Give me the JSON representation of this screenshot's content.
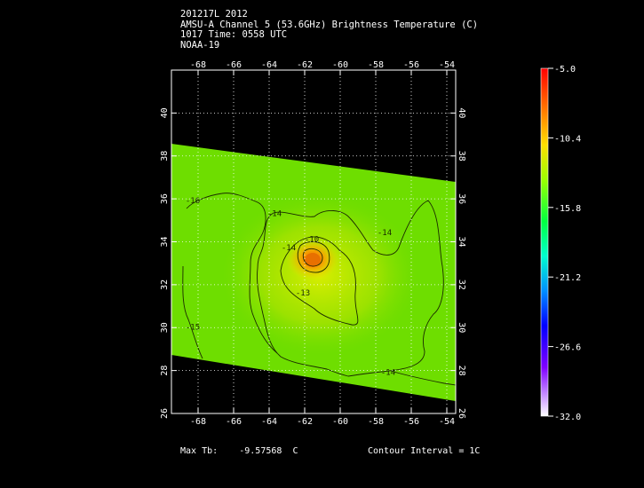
{
  "header": {
    "line1": "201217L 2012",
    "line2": "AMSU-A Channel 5 (53.6GHz) Brightness Temperature (C)",
    "line3": "1017 Time: 0558 UTC",
    "line4": "NOAA-19"
  },
  "map": {
    "lon_ticks": [
      -68,
      -66,
      -64,
      -62,
      -60,
      -58,
      -56,
      -54
    ],
    "lon_labels": [
      "-68",
      "-66",
      "-64",
      "-62",
      "-60",
      "-58",
      "-56",
      "-54"
    ],
    "lat_ticks": [
      26,
      28,
      30,
      32,
      34,
      36,
      38,
      40
    ],
    "lat_labels": [
      "26",
      "28",
      "30",
      "32",
      "34",
      "36",
      "38",
      "40"
    ],
    "lon_range": [
      -69.5,
      -53.5
    ],
    "lat_range": [
      26,
      42
    ],
    "grid": "dotted",
    "contour_labels": [
      {
        "text": "-14",
        "lon": -62.9,
        "lat": 33.6
      },
      {
        "text": "-14",
        "lon": -63.7,
        "lat": 35.2
      },
      {
        "text": "-16",
        "lon": -68.3,
        "lat": 35.8
      },
      {
        "text": "-14",
        "lon": -57.5,
        "lat": 34.3
      },
      {
        "text": "-13",
        "lon": -62.1,
        "lat": 31.5
      },
      {
        "text": "-15",
        "lon": -68.3,
        "lat": 29.9
      },
      {
        "text": "-14",
        "lon": -57.3,
        "lat": 27.8
      },
      {
        "text": "-10",
        "lon": -61.6,
        "lat": 34.0
      }
    ]
  },
  "colorbar": {
    "tick_labels": [
      "-5.0",
      "-10.4",
      "-15.8",
      "-21.2",
      "-26.6",
      "-32.0"
    ],
    "colors": [
      "#ff0000",
      "#ff7a00",
      "#fff000",
      "#7fff00",
      "#00ff44",
      "#00ffd0",
      "#0080ff",
      "#0000ff",
      "#8000ff",
      "#ffffff"
    ]
  },
  "footer": {
    "max_tb_label": "Max Tb:",
    "max_tb_value": "-9.57568",
    "max_tb_unit": "C",
    "contour_interval": "Contour Interval = 1C"
  }
}
